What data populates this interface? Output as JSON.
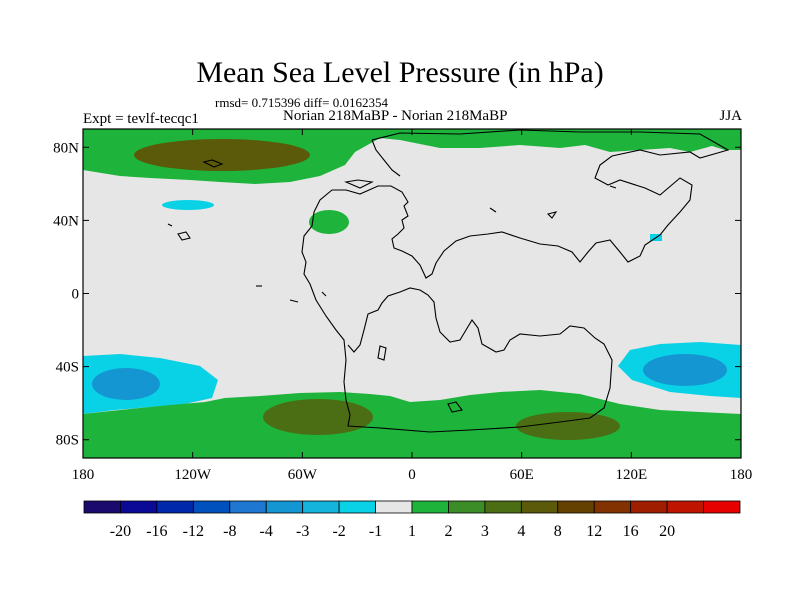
{
  "chart_data": {
    "type": "contour-map",
    "title": "Mean Sea Level Pressure (in hPa)",
    "subtitle": "rmsd= 0.715396 diff= 0.0162354",
    "left_label": "Expt = tevlf-tecqc1",
    "center_label": "Norian 218MaBP - Norian 218MaBP",
    "right_label": "JJA",
    "x_range": [
      -180,
      180
    ],
    "y_range": [
      -90,
      90
    ],
    "x_ticks": [
      {
        "value": -180,
        "label": "180"
      },
      {
        "value": -120,
        "label": "120W"
      },
      {
        "value": -60,
        "label": "60W"
      },
      {
        "value": 0,
        "label": "0"
      },
      {
        "value": 60,
        "label": "60E"
      },
      {
        "value": 120,
        "label": "120E"
      },
      {
        "value": 180,
        "label": "180"
      }
    ],
    "y_ticks": [
      {
        "value": 80,
        "label": "80N"
      },
      {
        "value": 40,
        "label": "40N"
      },
      {
        "value": 0,
        "label": "0"
      },
      {
        "value": -40,
        "label": "40S"
      },
      {
        "value": -80,
        "label": "80S"
      }
    ],
    "colorbar": {
      "colors": [
        "#1a0a6e",
        "#0a0a96",
        "#0028aa",
        "#0050be",
        "#1e78d2",
        "#1496d2",
        "#14b4dc",
        "#0ad2e6",
        "#e6e6e6",
        "#1eb43c",
        "#3c8c28",
        "#4b6e14",
        "#5a5a0a",
        "#644100",
        "#823200",
        "#a01e00",
        "#be1400",
        "#e60000"
      ],
      "levels": [
        "-20",
        "-16",
        "-12",
        "-8",
        "-4",
        "-3",
        "-2",
        "-1",
        "1",
        "2",
        "3",
        "4",
        "8",
        "12",
        "16",
        "20"
      ]
    },
    "fields": [
      {
        "region": "arctic-ocean-band",
        "value_range": "1 to 2",
        "lon": [
          -180,
          180
        ],
        "lat": [
          68,
          90
        ]
      },
      {
        "region": "north-pacific-center",
        "value_range": "3 to 4",
        "center": [
          -125,
          81
        ]
      },
      {
        "region": "north-pacific-low",
        "value_range": "-2 to -1",
        "center": [
          -125,
          48
        ]
      },
      {
        "region": "north-atlantic-cell",
        "value_range": "1 to 2",
        "center": [
          -40,
          40
        ]
      },
      {
        "region": "east-asia-low",
        "value_range": "-2 to -1",
        "center": [
          133,
          31
        ]
      },
      {
        "region": "south-pacific-low",
        "value_range": "-3 to -1",
        "center": [
          -160,
          -50
        ]
      },
      {
        "region": "south-indian-low",
        "value_range": "-3 to -1",
        "center": [
          150,
          -40
        ]
      },
      {
        "region": "southern-band",
        "value_range": "1 to 4",
        "lon": [
          -180,
          180
        ],
        "lat": [
          -90,
          -60
        ]
      }
    ]
  }
}
